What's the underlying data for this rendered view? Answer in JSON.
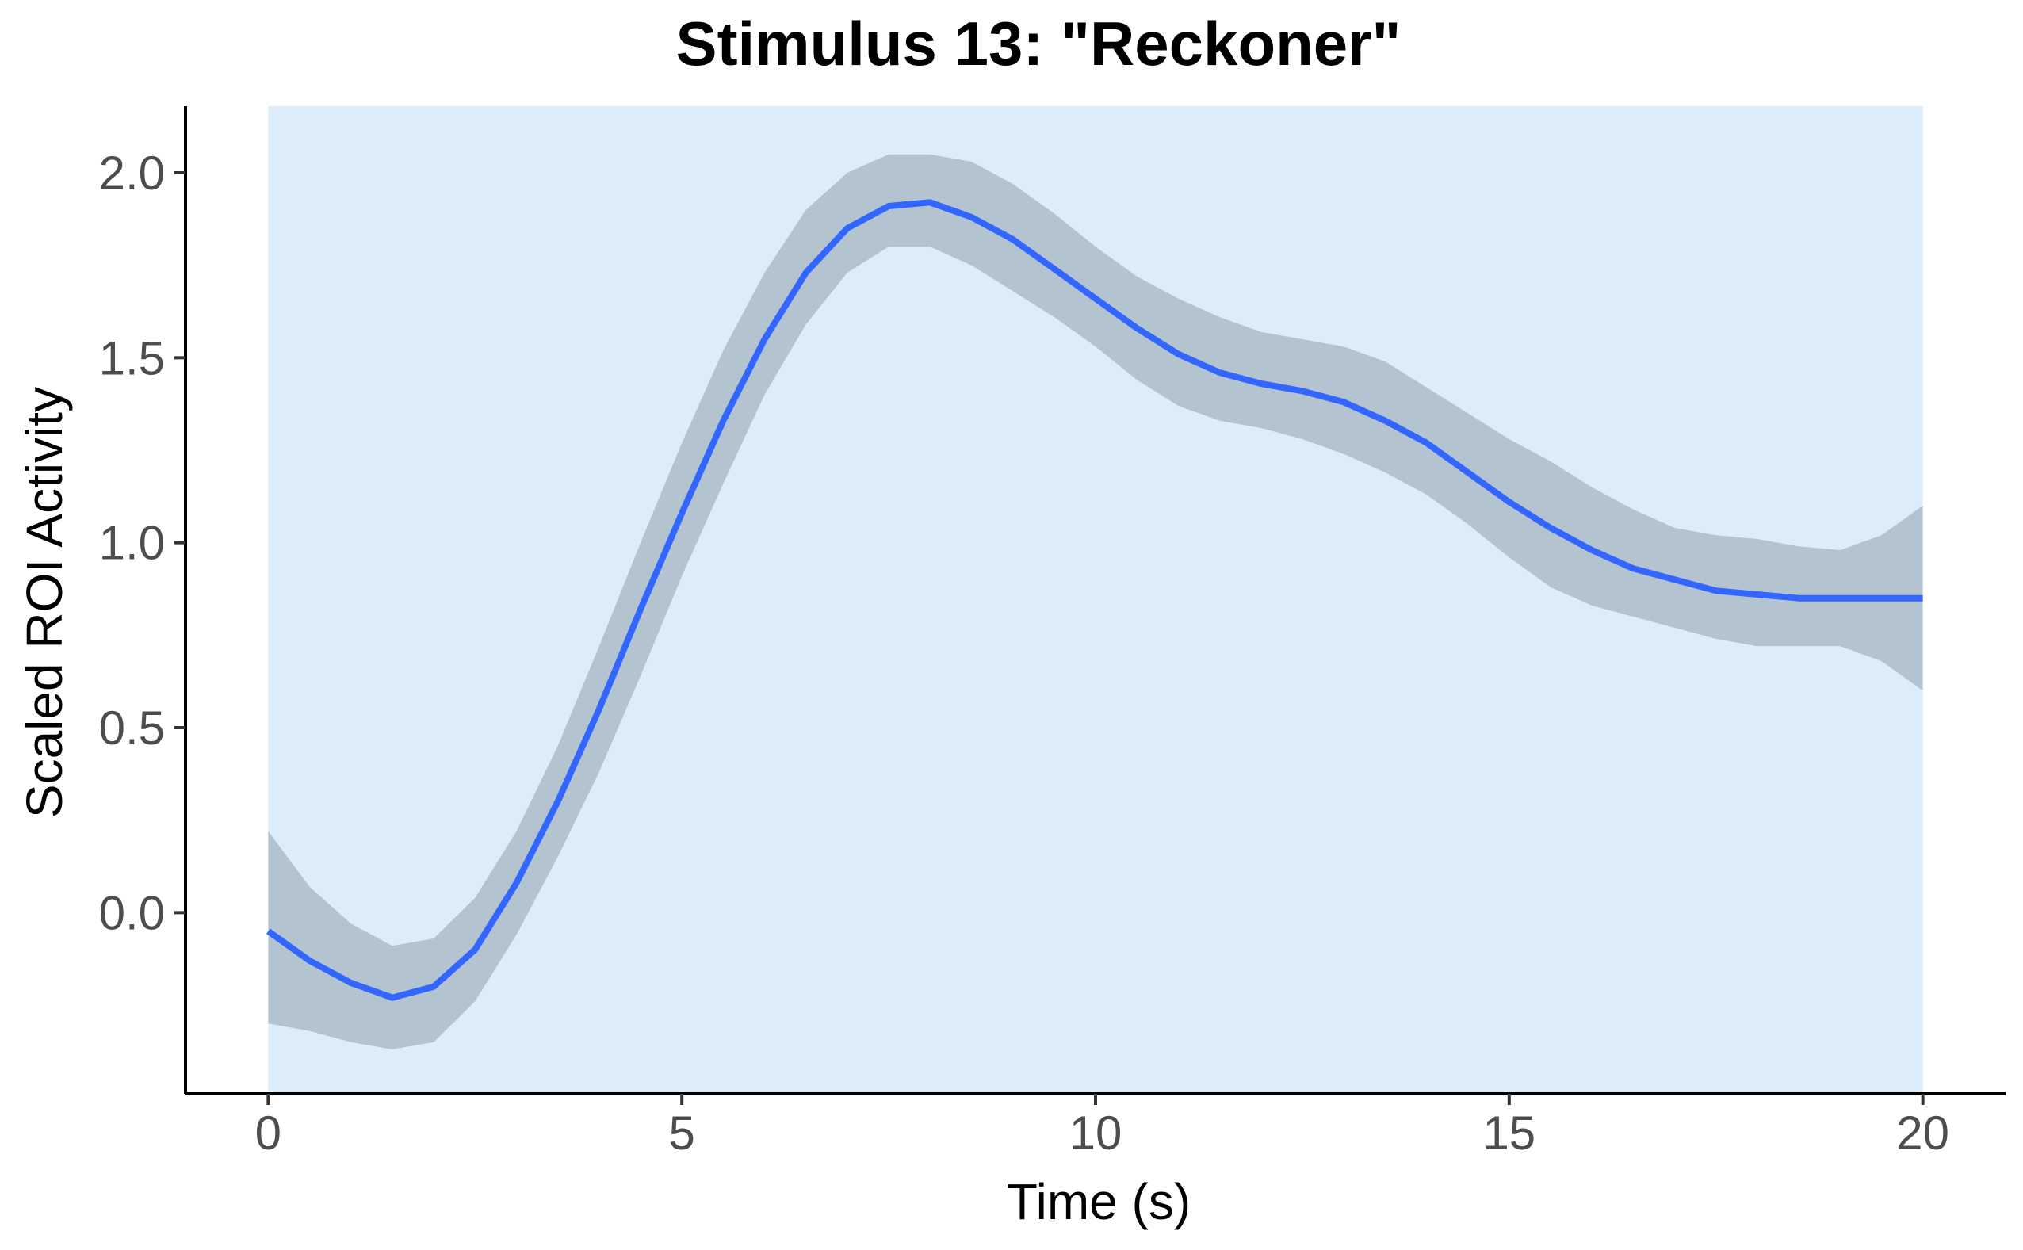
{
  "chart_data": {
    "type": "line",
    "title": "Stimulus 13: \"Reckoner\"",
    "xlabel": "Time (s)",
    "ylabel": "Scaled ROI Activity",
    "xlim": [
      -1,
      21
    ],
    "ylim": [
      -0.49,
      2.18
    ],
    "x_ticks": [
      0,
      5,
      10,
      15,
      20
    ],
    "x_tick_labels": [
      "0",
      "5",
      "10",
      "15",
      "20"
    ],
    "y_ticks": [
      0.0,
      0.5,
      1.0,
      1.5,
      2.0
    ],
    "y_tick_labels": [
      "0.0",
      "0.5",
      "1.0",
      "1.5",
      "2.0"
    ],
    "grid": false,
    "legend": "none",
    "highlight_region": {
      "x": [
        0,
        20
      ],
      "color": "#dcecf8"
    },
    "colors": {
      "line": "#3366ff",
      "ribbon": "#a8b7c4",
      "axis": "#000000"
    },
    "series": [
      {
        "x": [
          0,
          0.5,
          1,
          1.5,
          2,
          2.5,
          3,
          3.5,
          4,
          4.5,
          5,
          5.5,
          6,
          6.5,
          7,
          7.5,
          8,
          8.5,
          9,
          9.5,
          10,
          10.5,
          11,
          11.5,
          12,
          12.5,
          13,
          13.5,
          14,
          14.5,
          15,
          15.5,
          16,
          16.5,
          17,
          17.5,
          18,
          18.5,
          19,
          19.5,
          20
        ],
        "y": [
          -0.05,
          -0.13,
          -0.19,
          -0.23,
          -0.2,
          -0.1,
          0.08,
          0.3,
          0.55,
          0.82,
          1.08,
          1.33,
          1.55,
          1.73,
          1.85,
          1.91,
          1.92,
          1.88,
          1.82,
          1.74,
          1.66,
          1.58,
          1.51,
          1.46,
          1.43,
          1.41,
          1.38,
          1.33,
          1.27,
          1.19,
          1.11,
          1.04,
          0.98,
          0.93,
          0.9,
          0.87,
          0.86,
          0.85,
          0.85,
          0.85,
          0.85
        ],
        "lower": [
          -0.3,
          -0.32,
          -0.35,
          -0.37,
          -0.35,
          -0.24,
          -0.06,
          0.15,
          0.38,
          0.64,
          0.91,
          1.16,
          1.4,
          1.59,
          1.73,
          1.8,
          1.8,
          1.75,
          1.68,
          1.61,
          1.53,
          1.44,
          1.37,
          1.33,
          1.31,
          1.28,
          1.24,
          1.19,
          1.13,
          1.05,
          0.96,
          0.88,
          0.83,
          0.8,
          0.77,
          0.74,
          0.72,
          0.72,
          0.72,
          0.68,
          0.6
        ],
        "upper": [
          0.22,
          0.07,
          -0.03,
          -0.09,
          -0.07,
          0.04,
          0.22,
          0.45,
          0.72,
          1.0,
          1.27,
          1.52,
          1.73,
          1.9,
          2.0,
          2.05,
          2.05,
          2.03,
          1.97,
          1.89,
          1.8,
          1.72,
          1.66,
          1.61,
          1.57,
          1.55,
          1.53,
          1.49,
          1.42,
          1.35,
          1.28,
          1.22,
          1.15,
          1.09,
          1.04,
          1.02,
          1.01,
          0.99,
          0.98,
          1.02,
          1.1
        ]
      }
    ]
  }
}
